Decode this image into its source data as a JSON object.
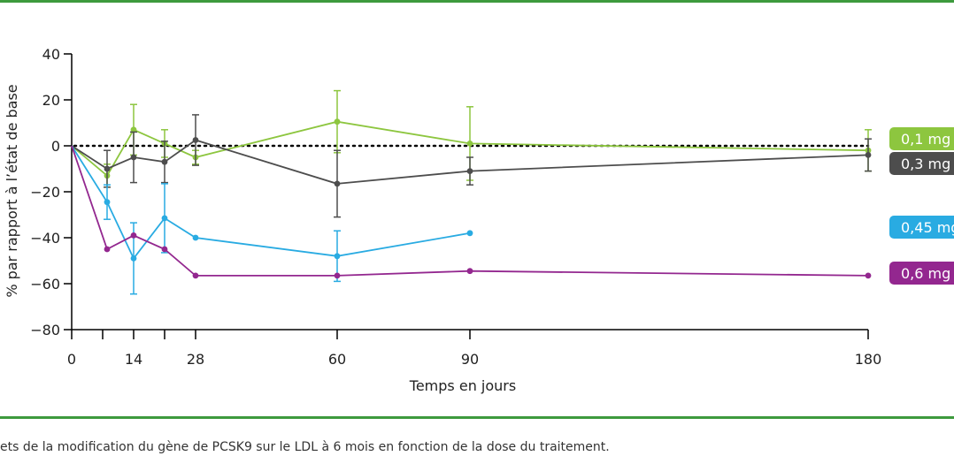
{
  "caption": "ets de la modification du gène de PCSK9 sur le LDL à 6 mois en fonction de la dose du traitement.",
  "chart_data": {
    "type": "line",
    "xlabel": "Temps en jours",
    "ylabel": "% par rapport à l’état de base",
    "x_ticks": [
      0,
      7,
      14,
      21,
      28,
      60,
      90,
      180
    ],
    "x_tick_labels": [
      "0",
      "",
      "14",
      "",
      "28",
      "60",
      "90",
      "180"
    ],
    "y_ticks": [
      40,
      20,
      0,
      -20,
      -40,
      -60,
      -80
    ],
    "y_tick_labels": [
      "40",
      "20",
      "0",
      "−20",
      "−40",
      "−60",
      "−80"
    ],
    "xlim": [
      0,
      180
    ],
    "ylim": [
      -80,
      40
    ],
    "reference_line": 0,
    "grid": false,
    "series": [
      {
        "name": "0,1 mg",
        "color": "#8dc63f",
        "x": [
          0,
          8,
          14,
          21,
          28,
          60,
          90,
          180
        ],
        "y": [
          0,
          -13,
          7,
          1,
          -5,
          10.5,
          1,
          -2
        ],
        "err": [
          0,
          5,
          11,
          6,
          3,
          13.5,
          16,
          9
        ]
      },
      {
        "name": "0,3 mg",
        "color": "#4d4d4d",
        "x": [
          0,
          8,
          14,
          21,
          28,
          60,
          90,
          180
        ],
        "y": [
          0,
          -10,
          -5,
          -7,
          2.5,
          -16.5,
          -11,
          -4
        ],
        "err": [
          0,
          8,
          11,
          9,
          11,
          14.5,
          6,
          7
        ]
      },
      {
        "name": "0,45 mg",
        "color": "#29abe2",
        "x": [
          0,
          8,
          14,
          21,
          28,
          60,
          90
        ],
        "y": [
          0,
          -24.5,
          -49,
          -31.5,
          -40,
          -48,
          -38
        ],
        "err": [
          0,
          7.5,
          15.5,
          15,
          0,
          11,
          0
        ]
      },
      {
        "name": "0,6 mg",
        "color": "#93278f",
        "x": [
          0,
          8,
          14,
          21,
          28,
          60,
          90,
          180
        ],
        "y": [
          0,
          -45,
          -39,
          -45,
          -56.5,
          -56.5,
          -54.5,
          -56.5
        ],
        "err": [
          0,
          0,
          0,
          0,
          0,
          0,
          0,
          0
        ]
      }
    ]
  }
}
